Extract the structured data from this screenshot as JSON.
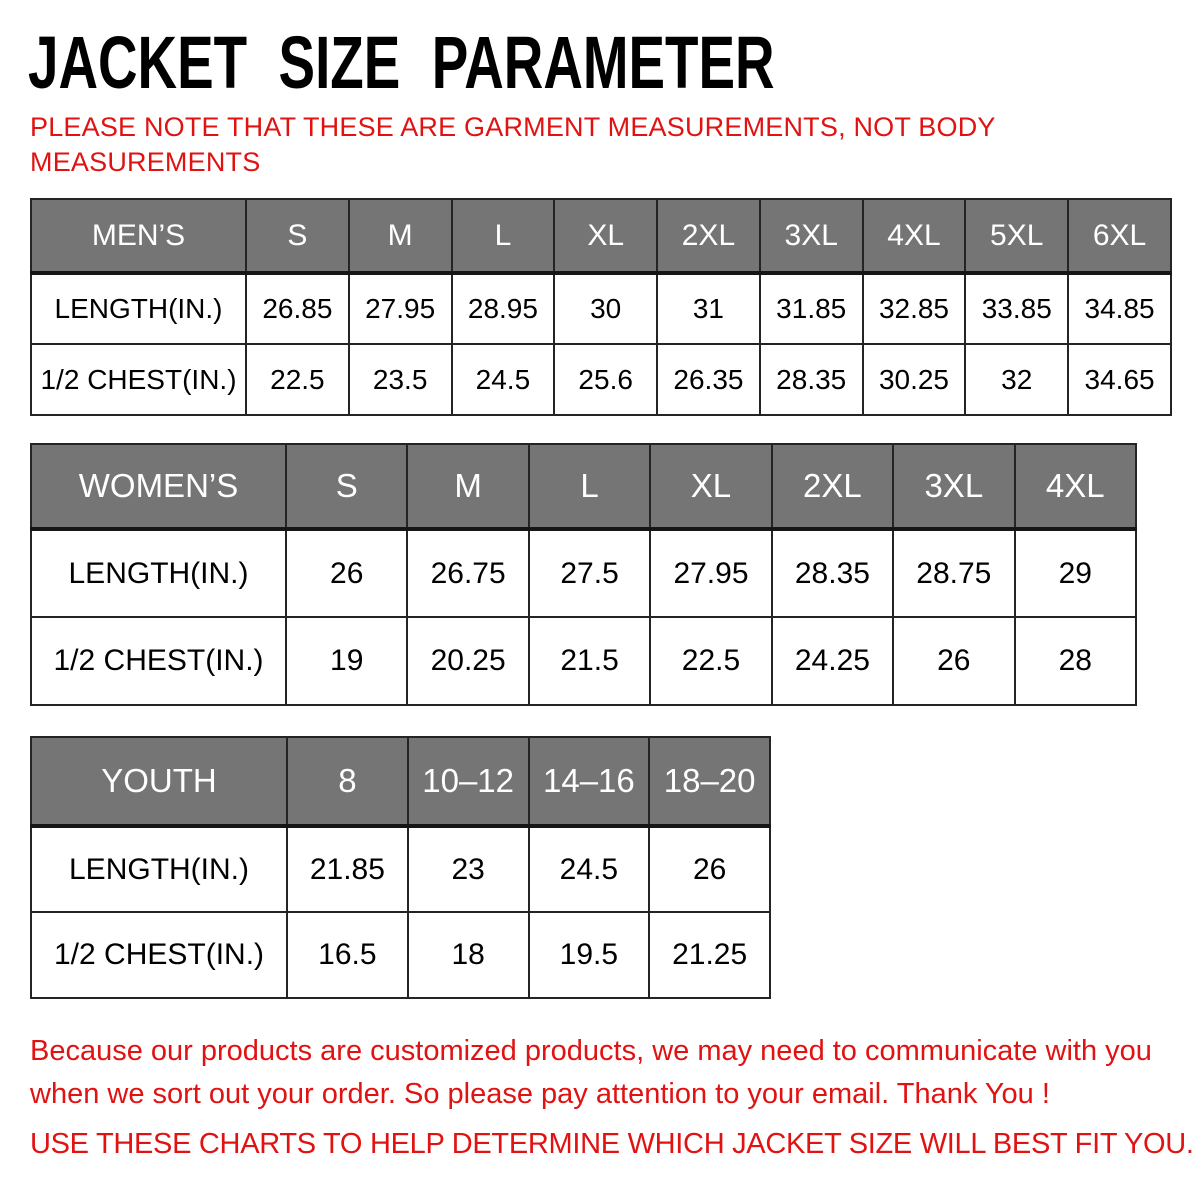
{
  "page": {
    "title": "JACKET SIZE PARAMETER",
    "note_lines": [
      "PLEASE NOTE THAT THESE ARE GARMENT MEASUREMENTS, NOT BODY",
      "MEASUREMENTS"
    ],
    "footer_lines": [
      "Because our products are customized products, we may need to communicate with you",
      "when we sort out your order. So please pay attention to your email. Thank You !"
    ],
    "footer_advice": "USE THESE CHARTS TO HELP DETERMINE WHICH JACKET SIZE WILL BEST FIT YOU."
  },
  "colors": {
    "accent_red": "#e01212",
    "header_gray": "#757575",
    "border_dark": "#242424",
    "header_text": "#ffffff"
  },
  "tables": [
    {
      "name": "mens",
      "group_label": "MEN’S",
      "sizes": [
        "S",
        "M",
        "L",
        "XL",
        "2XL",
        "3XL",
        "4XL",
        "5XL",
        "6XL"
      ],
      "rows": [
        {
          "label": "LENGTH(IN.)",
          "values": [
            "26.85",
            "27.95",
            "28.95",
            "30",
            "31",
            "31.85",
            "32.85",
            "33.85",
            "34.85"
          ]
        },
        {
          "label": "1/2 CHEST(IN.)",
          "values": [
            "22.5",
            "23.5",
            "24.5",
            "25.6",
            "26.35",
            "28.35",
            "30.25",
            "32",
            "34.65"
          ]
        }
      ]
    },
    {
      "name": "womens",
      "group_label": "WOMEN’S",
      "sizes": [
        "S",
        "M",
        "L",
        "XL",
        "2XL",
        "3XL",
        "4XL"
      ],
      "rows": [
        {
          "label": "LENGTH(IN.)",
          "values": [
            "26",
            "26.75",
            "27.5",
            "27.95",
            "28.35",
            "28.75",
            "29"
          ]
        },
        {
          "label": "1/2 CHEST(IN.)",
          "values": [
            "19",
            "20.25",
            "21.5",
            "22.5",
            "24.25",
            "26",
            "28"
          ]
        }
      ]
    },
    {
      "name": "youth",
      "group_label": "YOUTH",
      "sizes": [
        "8",
        "10–12",
        "14–16",
        "18–20"
      ],
      "rows": [
        {
          "label": "LENGTH(IN.)",
          "values": [
            "21.85",
            "23",
            "24.5",
            "26"
          ]
        },
        {
          "label": "1/2 CHEST(IN.)",
          "values": [
            "16.5",
            "18",
            "19.5",
            "21.25"
          ]
        }
      ]
    }
  ]
}
